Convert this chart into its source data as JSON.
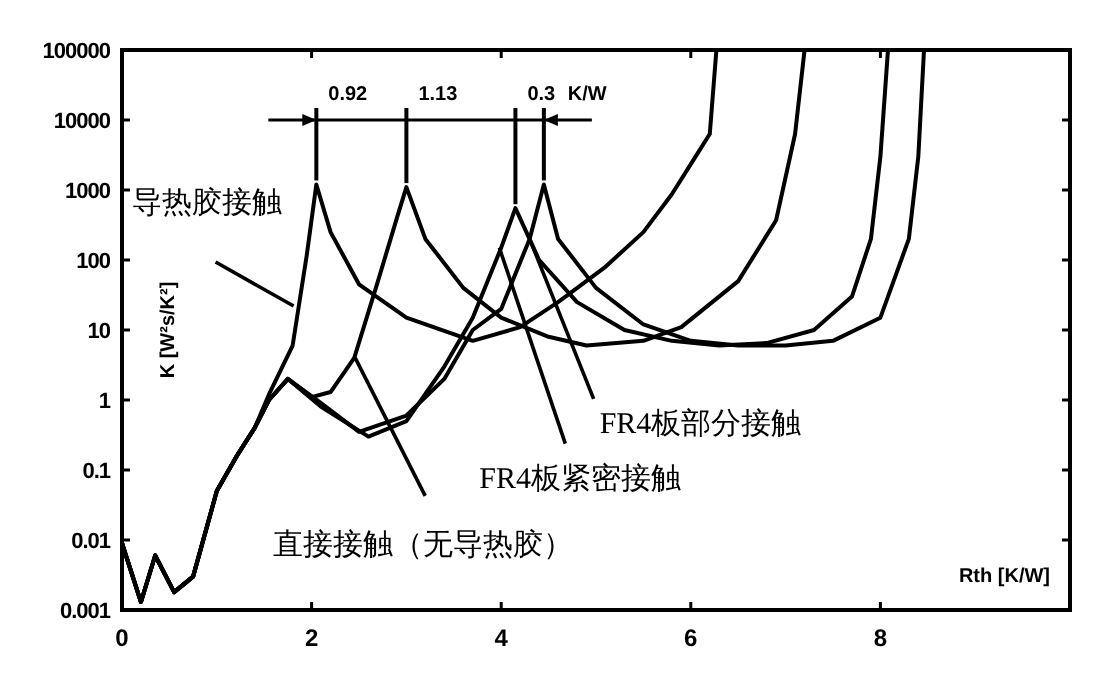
{
  "chart_data": {
    "type": "line",
    "xlabel": "Rth [K/W]",
    "ylabel": "K [W²s/K²]",
    "log": "y",
    "grid": false,
    "xlim": [
      0,
      10
    ],
    "xticks": [
      0,
      2,
      4,
      6,
      8
    ],
    "ylim": [
      0.001,
      100000
    ],
    "yticks": [
      0.001,
      0.01,
      0.1,
      1,
      10,
      100,
      1000,
      10000,
      100000
    ],
    "series": [
      {
        "color": "#000000",
        "x": [
          0,
          0.2,
          0.35,
          0.55,
          0.75,
          1.0,
          1.2,
          1.4,
          1.55,
          1.8,
          1.95,
          2.05,
          2.2,
          2.5,
          3.0,
          3.7,
          4.2,
          4.6,
          5.1,
          5.5,
          5.8,
          6.05,
          6.2,
          6.27
        ],
        "values": [
          0.009,
          0.0013,
          0.006,
          0.0018,
          0.003,
          0.05,
          0.15,
          0.4,
          1.2,
          6,
          120,
          1200,
          250,
          45,
          15,
          7,
          11,
          25,
          80,
          250,
          870,
          3000,
          6300,
          100000
        ]
      },
      {
        "color": "#000000",
        "x": [
          0,
          0.2,
          0.35,
          0.55,
          0.75,
          1.0,
          1.2,
          1.4,
          1.55,
          1.75,
          2.0,
          2.2,
          2.45,
          2.7,
          2.9,
          3.0,
          3.2,
          3.6,
          4.0,
          4.5,
          4.9,
          5.5,
          5.9,
          6.5,
          6.9,
          7.1,
          7.2
        ],
        "values": [
          0.009,
          0.0013,
          0.006,
          0.0018,
          0.003,
          0.05,
          0.15,
          0.4,
          1.0,
          2,
          1.1,
          1.3,
          4,
          50,
          400,
          1100,
          200,
          40,
          15,
          8,
          6,
          7,
          11,
          50,
          370,
          6300,
          100000
        ]
      },
      {
        "color": "#000000",
        "x": [
          0,
          0.2,
          0.35,
          0.55,
          0.75,
          1.0,
          1.2,
          1.4,
          1.55,
          1.75,
          2.1,
          2.6,
          3.0,
          3.4,
          3.7,
          4.0,
          4.15,
          4.4,
          4.8,
          5.3,
          5.8,
          6.3,
          6.8,
          7.3,
          7.7,
          7.9,
          8.0,
          8.08
        ],
        "values": [
          0.009,
          0.0013,
          0.006,
          0.0018,
          0.003,
          0.05,
          0.15,
          0.4,
          1.0,
          2,
          0.8,
          0.3,
          0.5,
          3,
          15,
          150,
          550,
          100,
          25,
          10,
          7,
          6,
          6.5,
          10,
          30,
          200,
          3000,
          100000
        ]
      },
      {
        "color": "#000000",
        "x": [
          0,
          0.2,
          0.35,
          0.55,
          0.75,
          1.0,
          1.2,
          1.4,
          1.55,
          1.75,
          2.1,
          2.5,
          3.0,
          3.4,
          3.7,
          4.0,
          4.3,
          4.45,
          4.6,
          5.0,
          5.5,
          6.0,
          6.5,
          7.0,
          7.5,
          8.0,
          8.3,
          8.4,
          8.46
        ],
        "values": [
          0.009,
          0.0013,
          0.006,
          0.0018,
          0.003,
          0.05,
          0.15,
          0.4,
          1.0,
          2,
          0.9,
          0.35,
          0.6,
          2,
          10,
          20,
          200,
          1200,
          200,
          40,
          12,
          7,
          6,
          6,
          7,
          15,
          200,
          3000,
          100000
        ]
      }
    ],
    "annotations": [
      {
        "text": "导热胶接触",
        "x": 1.81,
        "y": 22
      },
      {
        "text": "FR4板部分接触",
        "x": 4.3,
        "y": 200
      },
      {
        "text": "FR4板紧密接触",
        "x": 3.98,
        "y": 150
      },
      {
        "text": "直接接触（无导热胶）",
        "x": 2.46,
        "y": 4
      },
      {
        "text": "0.92",
        "x": 2.05,
        "y": 1200
      },
      {
        "text": "1.13",
        "x": 3.0,
        "y": 1100
      },
      {
        "text": "0.3",
        "x": 4.15,
        "y": 550
      },
      {
        "text": "K/W",
        "x": 4.45,
        "y": 1200
      }
    ]
  }
}
